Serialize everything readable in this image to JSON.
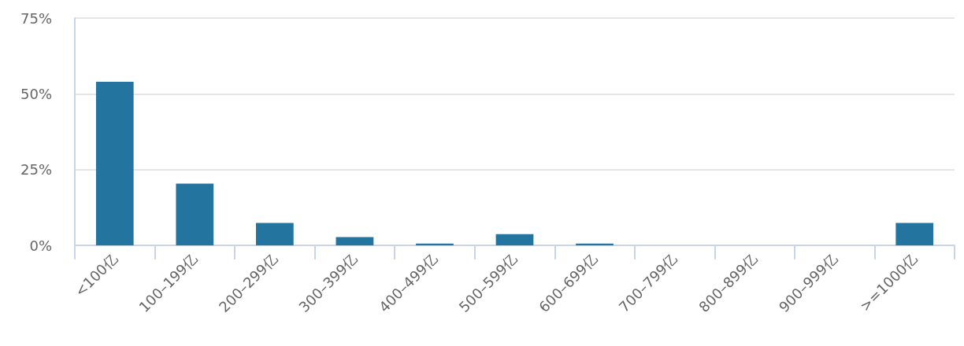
{
  "chart_data": {
    "type": "bar",
    "categories": [
      "<100亿",
      "100–199亿",
      "200–299亿",
      "300–399亿",
      "400–499亿",
      "500–599亿",
      "600–699亿",
      "700–799亿",
      "800–899亿",
      "900–999亿",
      ">=1000亿"
    ],
    "values": [
      54,
      20.4,
      7.4,
      2.7,
      0.6,
      3.7,
      0.6,
      0,
      0,
      0,
      7.4
    ],
    "color": "#2375a0",
    "ylim": [
      0,
      75
    ],
    "yticks": [
      {
        "value": 0,
        "label": "0%"
      },
      {
        "value": 25,
        "label": "25%"
      },
      {
        "value": 50,
        "label": "50%"
      },
      {
        "value": 75,
        "label": "75%"
      }
    ],
    "grid": "y"
  }
}
